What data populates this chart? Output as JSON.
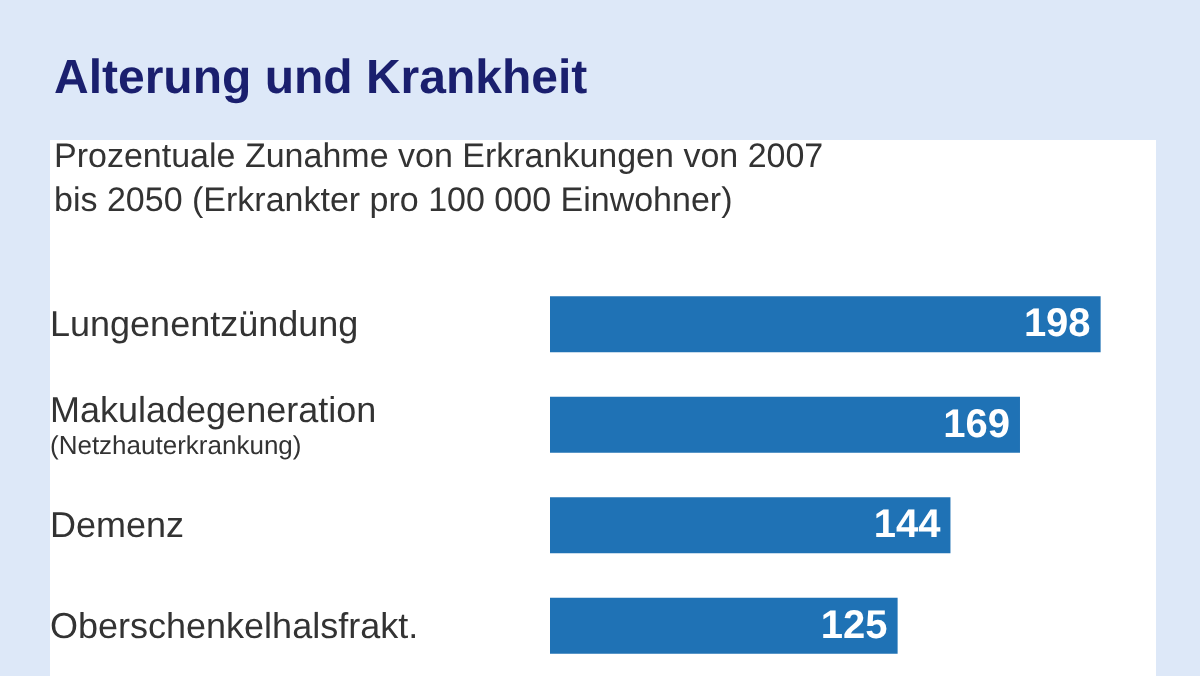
{
  "chart_data": {
    "type": "bar",
    "orientation": "horizontal",
    "title": "Alterung und Krankheit",
    "subtitle": "Prozentuale Zunahme von Erkrankungen von 2007 bis 2050 (Erkrankter pro 100 000 Einwohner)",
    "categories": [
      "Lungenentzündung",
      "Makuladegeneration\n(Netzhauterkrankung)",
      "Demenz",
      "Oberschenkelhalsfrakt."
    ],
    "values": [
      198,
      169,
      144,
      125
    ],
    "color": "#1f72b5",
    "data_labels": true
  }
}
